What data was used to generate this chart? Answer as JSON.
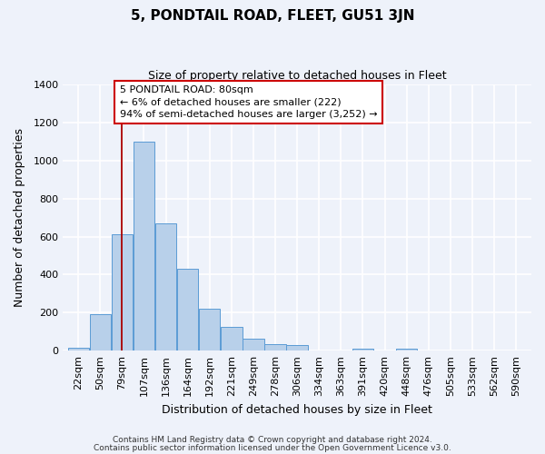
{
  "title": "5, PONDTAIL ROAD, FLEET, GU51 3JN",
  "subtitle": "Size of property relative to detached houses in Fleet",
  "xlabel": "Distribution of detached houses by size in Fleet",
  "ylabel": "Number of detached properties",
  "bin_labels": [
    "22sqm",
    "50sqm",
    "79sqm",
    "107sqm",
    "136sqm",
    "164sqm",
    "192sqm",
    "221sqm",
    "249sqm",
    "278sqm",
    "306sqm",
    "334sqm",
    "363sqm",
    "391sqm",
    "420sqm",
    "448sqm",
    "476sqm",
    "505sqm",
    "533sqm",
    "562sqm",
    "590sqm"
  ],
  "bar_values": [
    15,
    190,
    610,
    1100,
    670,
    430,
    220,
    125,
    65,
    35,
    28,
    0,
    0,
    12,
    0,
    12,
    0,
    0,
    0,
    0,
    0
  ],
  "bar_color": "#b8d0ea",
  "bar_edge_color": "#5b9bd5",
  "vline_x_idx": 2,
  "vline_color": "#aa0000",
  "annotation_text": "5 PONDTAIL ROAD: 80sqm\n← 6% of detached houses are smaller (222)\n94% of semi-detached houses are larger (3,252) →",
  "annotation_box_color": "#ffffff",
  "annotation_box_edge": "#cc0000",
  "ylim": [
    0,
    1400
  ],
  "yticks": [
    0,
    200,
    400,
    600,
    800,
    1000,
    1200,
    1400
  ],
  "footer1": "Contains HM Land Registry data © Crown copyright and database right 2024.",
  "footer2": "Contains public sector information licensed under the Open Government Licence v3.0.",
  "bg_color": "#eef2fa",
  "grid_color": "#ffffff",
  "title_fontsize": 11,
  "subtitle_fontsize": 9,
  "xlabel_fontsize": 9,
  "ylabel_fontsize": 9,
  "tick_fontsize": 8,
  "footer_fontsize": 6.5
}
